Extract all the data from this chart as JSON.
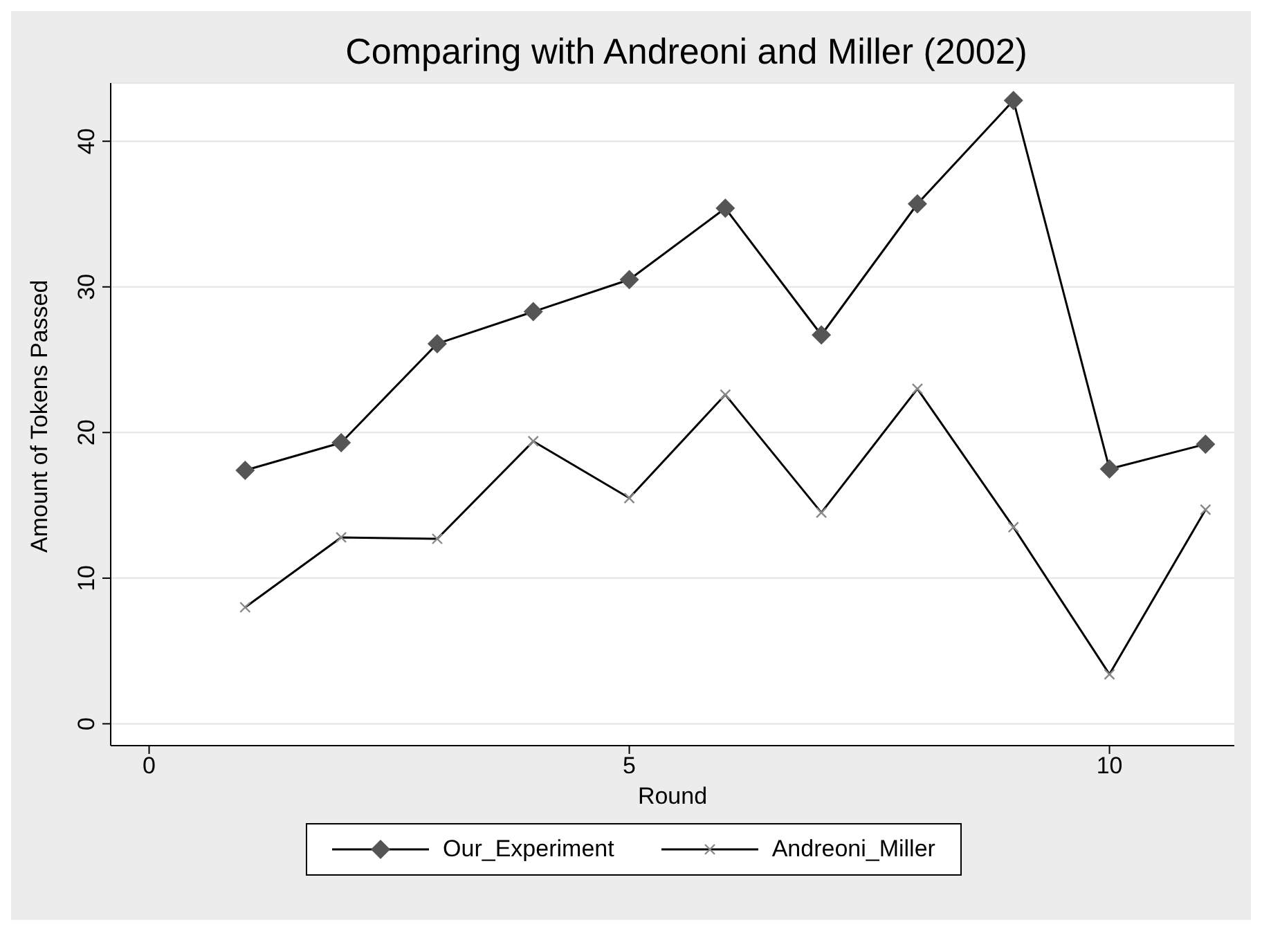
{
  "chart_data": {
    "type": "line",
    "title": "Comparing with Andreoni and Miller (2002)",
    "xlabel": "Round",
    "ylabel": "Amount of Tokens Passed",
    "x": [
      1,
      2,
      3,
      4,
      5,
      6,
      7,
      8,
      9,
      10,
      11
    ],
    "series": [
      {
        "name": "Our_Experiment",
        "color": "#000000",
        "marker": "diamond",
        "values": [
          17.4,
          19.3,
          26.1,
          28.3,
          30.5,
          35.4,
          26.7,
          35.7,
          42.8,
          17.5,
          19.2
        ]
      },
      {
        "name": "Andreoni_Miller",
        "color": "#000000",
        "marker": "cross",
        "values": [
          8.0,
          12.8,
          12.7,
          19.4,
          15.5,
          22.6,
          14.5,
          23.0,
          13.5,
          3.4,
          14.7
        ]
      }
    ],
    "xlim": [
      -0.4,
      11.3
    ],
    "xticks": [
      0,
      5,
      10
    ],
    "ylim": [
      -1.5,
      44
    ],
    "yticks": [
      0,
      10,
      20,
      30,
      40
    ],
    "grid": "y",
    "legend": "bottom",
    "line_style": "solid"
  }
}
